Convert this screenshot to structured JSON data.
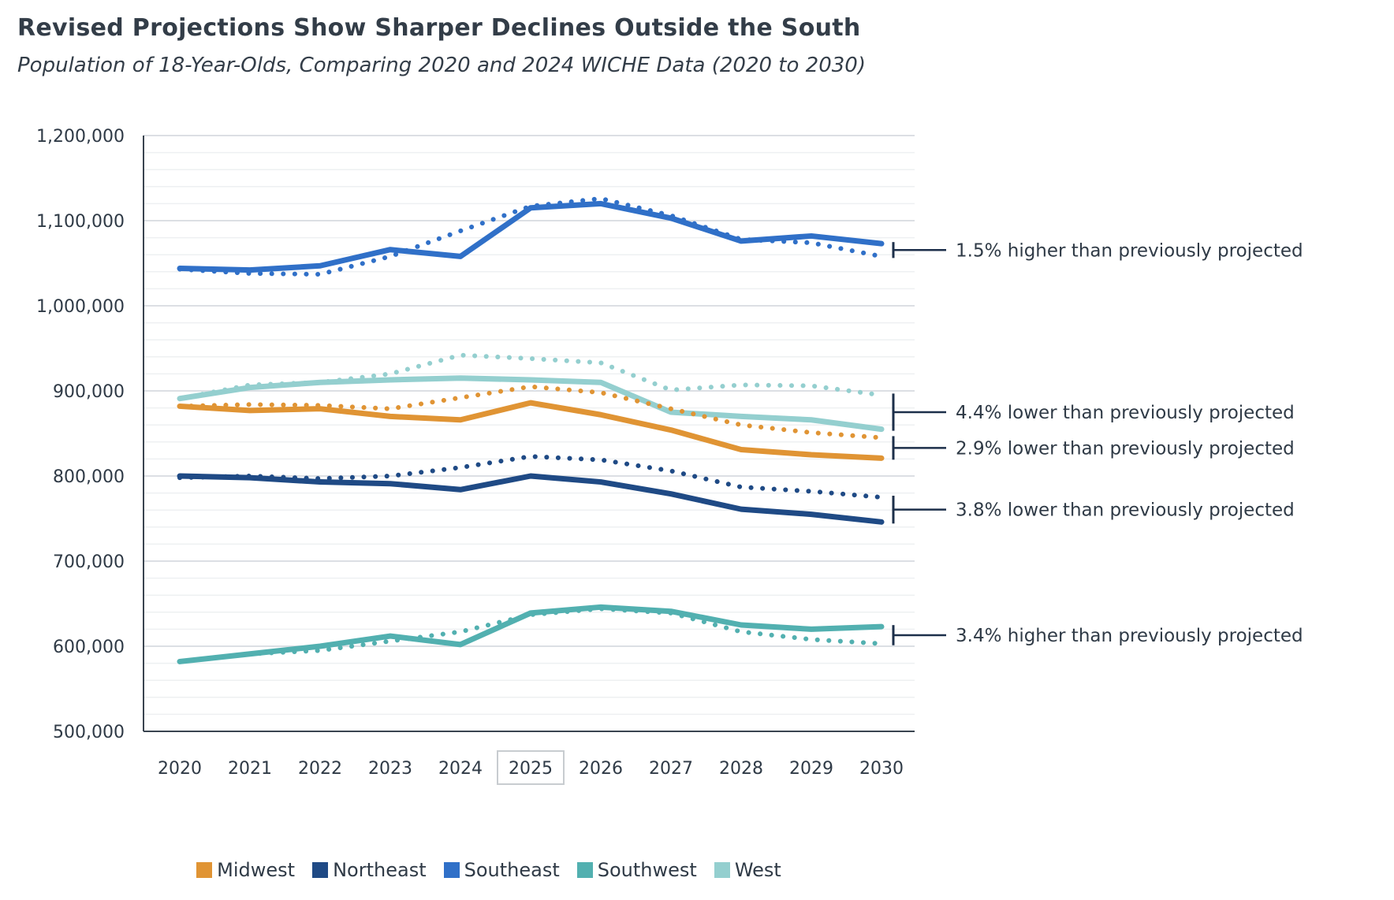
{
  "header": {
    "title": "Revised Projections Show Sharper Declines Outside the South",
    "subtitle": "Population of 18-Year-Olds, Comparing 2020 and 2024 WICHE Data (2020 to 2030)"
  },
  "chart_data": {
    "type": "line",
    "title": "Revised Projections Show Sharper Declines Outside the South",
    "subtitle": "Population of 18-Year-Olds, Comparing 2020 and 2024 WICHE Data (2020 to 2030)",
    "xlabel": "",
    "ylabel": "",
    "x": [
      "2020",
      "2021",
      "2022",
      "2023",
      "2024",
      "2025",
      "2026",
      "2027",
      "2028",
      "2029",
      "2030"
    ],
    "highlighted_x": "2025",
    "ylim": [
      500000,
      1200000
    ],
    "y_ticks": [
      {
        "value": 1200000,
        "label": "1,200,000"
      },
      {
        "value": 1100000,
        "label": "1,100,000"
      },
      {
        "value": 1000000,
        "label": "1,000,000"
      },
      {
        "value": 900000,
        "label": "900,000"
      },
      {
        "value": 800000,
        "label": "800,000"
      },
      {
        "value": 700000,
        "label": "700,000"
      },
      {
        "value": 600000,
        "label": "600,000"
      },
      {
        "value": 500000,
        "label": "500,000"
      }
    ],
    "minor_grid_step": 20000,
    "grid": true,
    "legend_position": "bottom",
    "line_styles": {
      "2024 WICHE Data": "solid",
      "2020 WICHE Data": "dotted"
    },
    "series": [
      {
        "name": "Southeast",
        "color": "#3070c8",
        "values_2024": [
          1044000,
          1042000,
          1047000,
          1066000,
          1058000,
          1115000,
          1120000,
          1103000,
          1076000,
          1082000,
          1073000
        ],
        "values_2020": [
          1043000,
          1038000,
          1037000,
          1058000,
          1088000,
          1117000,
          1126000,
          1106000,
          1078000,
          1074000,
          1058000
        ]
      },
      {
        "name": "West",
        "color": "#94cfcf",
        "values_2024": [
          891000,
          904000,
          910000,
          913000,
          915000,
          913000,
          910000,
          875000,
          870000,
          866000,
          855000
        ],
        "values_2020": [
          891000,
          907000,
          910000,
          920000,
          942000,
          938000,
          933000,
          901000,
          907000,
          906000,
          895000
        ]
      },
      {
        "name": "Midwest",
        "color": "#e09434",
        "values_2024": [
          882000,
          877000,
          879000,
          870000,
          866000,
          886000,
          872000,
          854000,
          831000,
          825000,
          821000
        ],
        "values_2020": [
          882000,
          884000,
          883000,
          879000,
          892000,
          905000,
          898000,
          879000,
          860000,
          851000,
          845000
        ]
      },
      {
        "name": "Northeast",
        "color": "#1f4a85",
        "values_2024": [
          800000,
          798000,
          793000,
          791000,
          784000,
          800000,
          793000,
          779000,
          761000,
          755000,
          746000
        ],
        "values_2020": [
          798000,
          800000,
          797000,
          800000,
          810000,
          823000,
          819000,
          806000,
          787000,
          782000,
          775000
        ]
      },
      {
        "name": "Southwest",
        "color": "#52b0b0",
        "values_2024": [
          582000,
          591000,
          600000,
          612000,
          602000,
          639000,
          646000,
          641000,
          625000,
          620000,
          623000
        ],
        "values_2020": [
          582000,
          591000,
          595000,
          606000,
          617000,
          637000,
          644000,
          639000,
          617000,
          608000,
          603000
        ]
      }
    ],
    "annotations": [
      {
        "series": "Southeast",
        "text": "1.5% higher than previously projected",
        "range": [
          1058000,
          1073000
        ]
      },
      {
        "series": "West",
        "text": "4.4% lower than previously projected",
        "range": [
          855000,
          895000
        ]
      },
      {
        "series": "Midwest",
        "text": "2.9% lower than previously projected",
        "range": [
          821000,
          845000
        ]
      },
      {
        "series": "Northeast",
        "text": "3.8% lower than previously projected",
        "range": [
          746000,
          775000
        ]
      },
      {
        "series": "Southwest",
        "text": "3.4% higher than previously projected",
        "range": [
          603000,
          623000
        ]
      }
    ],
    "legend": [
      "Midwest",
      "Northeast",
      "Southeast",
      "Southwest",
      "West"
    ]
  },
  "legend": {
    "items": [
      {
        "label": "Midwest",
        "color": "#e09434"
      },
      {
        "label": "Northeast",
        "color": "#1f4a85"
      },
      {
        "label": "Southeast",
        "color": "#3070c8"
      },
      {
        "label": "Southwest",
        "color": "#52b0b0"
      },
      {
        "label": "West",
        "color": "#94cfcf"
      }
    ]
  },
  "colors": {
    "axis": "#3a4450",
    "grid_major": "#dcdfe4",
    "grid_minor": "#eef0f2",
    "annotation": "#1c2f4a",
    "highlight_box": "#c8ccd0"
  }
}
